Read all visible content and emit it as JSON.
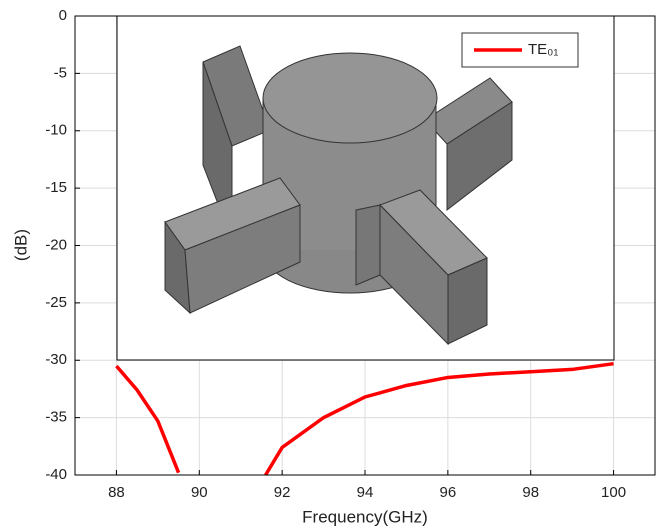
{
  "chart_data": {
    "type": "line",
    "x_label": "Frequency(GHz)",
    "y_label": "(dB)",
    "x": [
      88,
      88.5,
      89,
      89.5,
      90.5,
      91.6,
      92,
      93,
      94,
      95,
      96,
      97,
      98,
      99,
      100
    ],
    "series": [
      {
        "name": "TE₀₁",
        "color": "#ff0000",
        "values": [
          -30.5,
          -32.6,
          -35.3,
          -39.8,
          null,
          -40,
          -37.6,
          -35.0,
          -33.2,
          -32.2,
          -31.5,
          -31.2,
          -31.0,
          -30.8,
          -30.3
        ]
      }
    ],
    "xlim": [
      87,
      101
    ],
    "xticks": [
      88,
      90,
      92,
      94,
      96,
      98,
      100
    ],
    "ylim": [
      -40,
      0
    ],
    "yticks": [
      0,
      -5,
      -10,
      -15,
      -20,
      -25,
      -30,
      -35,
      -40
    ],
    "grid": true,
    "legend": "upper right"
  }
}
